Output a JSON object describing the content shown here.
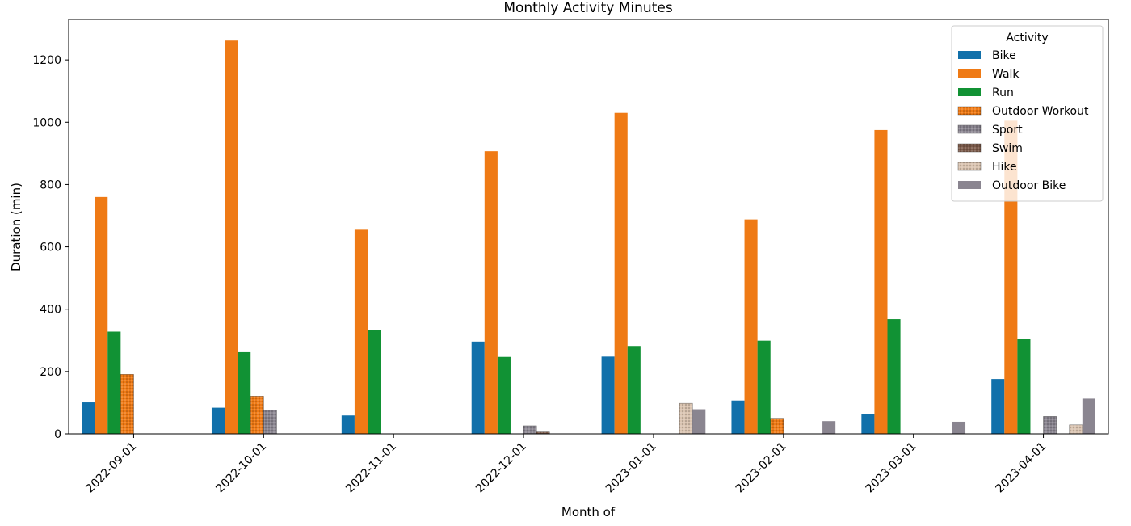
{
  "chart_data": {
    "type": "bar",
    "title": "Monthly Activity Minutes",
    "xlabel": "Month of",
    "ylabel": "Duration (min)",
    "ylim": [
      0,
      1330
    ],
    "yticks": [
      0,
      200,
      400,
      600,
      800,
      1000,
      1200
    ],
    "categories": [
      "2022-09-01",
      "2022-10-01",
      "2022-11-01",
      "2022-12-01",
      "2023-01-01",
      "2023-02-01",
      "2023-03-01",
      "2023-04-01"
    ],
    "legend_title": "Activity",
    "legend_position": "top-right",
    "grid": false,
    "series": [
      {
        "name": "Bike",
        "color": "#1170aa",
        "pattern": "solid",
        "values": [
          101,
          84,
          59,
          296,
          248,
          107,
          63,
          176
        ]
      },
      {
        "name": "Walk",
        "color": "#ef7a15",
        "pattern": "solid",
        "values": [
          760,
          1262,
          655,
          907,
          1030,
          688,
          975,
          1005
        ]
      },
      {
        "name": "Run",
        "color": "#119234",
        "pattern": "solid",
        "values": [
          328,
          262,
          334,
          247,
          282,
          299,
          368,
          305
        ]
      },
      {
        "name": "Outdoor Workout",
        "color": "#ef7a15",
        "pattern": "dotted",
        "values": [
          191,
          121,
          0,
          0,
          0,
          50,
          0,
          0
        ]
      },
      {
        "name": "Sport",
        "color": "#8a8590",
        "pattern": "dotted",
        "values": [
          0,
          76,
          0,
          26,
          0,
          0,
          0,
          56
        ]
      },
      {
        "name": "Swim",
        "color": "#7b5a4a",
        "pattern": "dotted",
        "values": [
          0,
          0,
          0,
          6,
          0,
          0,
          0,
          0
        ]
      },
      {
        "name": "Hike",
        "color": "#d9c3b0",
        "pattern": "dotted",
        "values": [
          0,
          0,
          0,
          0,
          98,
          0,
          0,
          29
        ]
      },
      {
        "name": "Outdoor Bike",
        "color": "#8a8590",
        "pattern": "solid",
        "values": [
          0,
          0,
          0,
          0,
          79,
          41,
          39,
          113
        ]
      }
    ]
  }
}
